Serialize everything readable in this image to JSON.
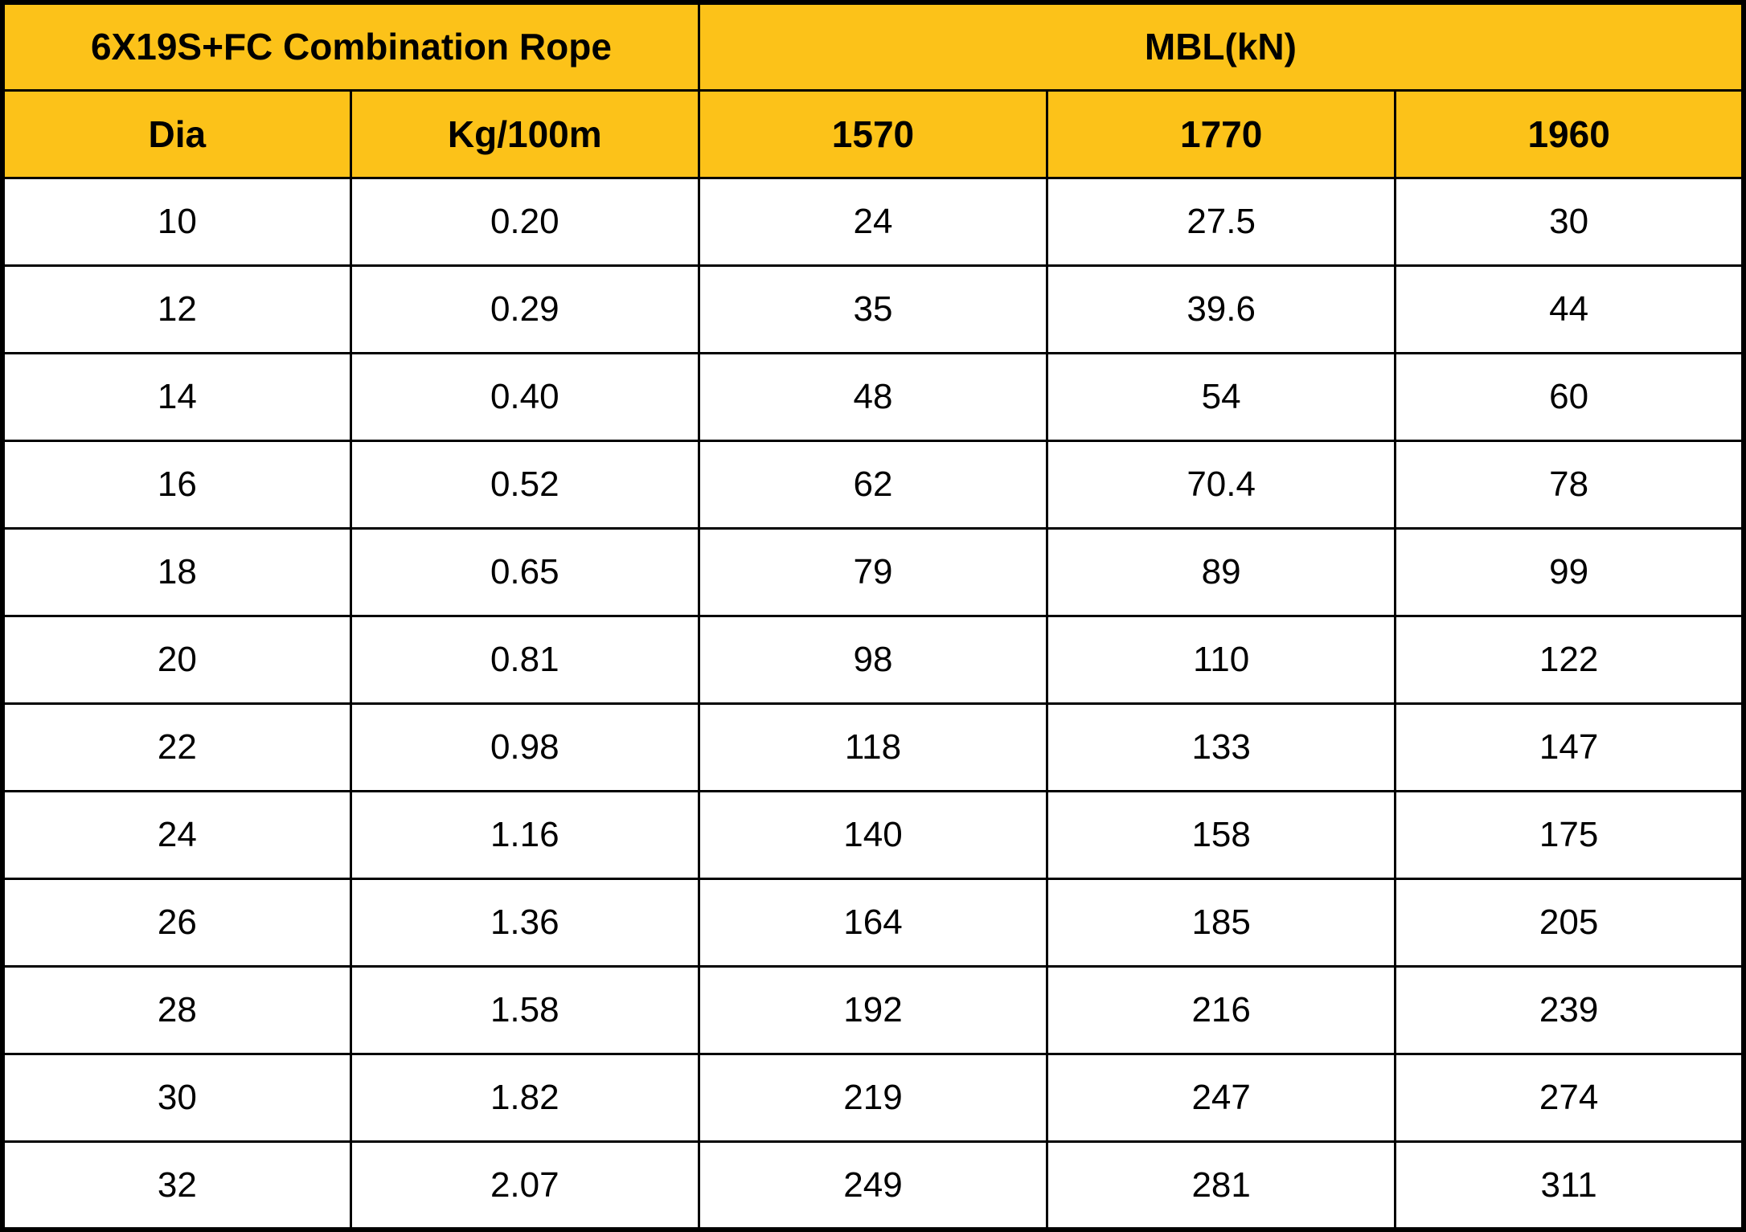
{
  "table": {
    "title": "6X19S+FC Combination Rope",
    "group_headers": [
      {
        "label": "6X19S+FC Combination Rope",
        "span": 2
      },
      {
        "label": "MBL(kN)",
        "span": 3
      }
    ],
    "columns": [
      "Dia",
      "Kg/100m",
      "1570",
      "1770",
      "1960"
    ],
    "rows": [
      [
        "10",
        "0.20",
        "24",
        "27.5",
        "30"
      ],
      [
        "12",
        "0.29",
        "35",
        "39.6",
        "44"
      ],
      [
        "14",
        "0.40",
        "48",
        "54",
        "60"
      ],
      [
        "16",
        "0.52",
        "62",
        "70.4",
        "78"
      ],
      [
        "18",
        "0.65",
        "79",
        "89",
        "99"
      ],
      [
        "20",
        "0.81",
        "98",
        "110",
        "122"
      ],
      [
        "22",
        "0.98",
        "118",
        "133",
        "147"
      ],
      [
        "24",
        "1.16",
        "140",
        "158",
        "175"
      ],
      [
        "26",
        "1.36",
        "164",
        "185",
        "205"
      ],
      [
        "28",
        "1.58",
        "192",
        "216",
        "239"
      ],
      [
        "30",
        "1.82",
        "219",
        "247",
        "274"
      ],
      [
        "32",
        "2.07",
        "249",
        "281",
        "311"
      ]
    ],
    "colors": {
      "header_bg": "#FCC219",
      "border": "#000000",
      "row_bg": "#FFFFFF",
      "text": "#000000"
    }
  }
}
